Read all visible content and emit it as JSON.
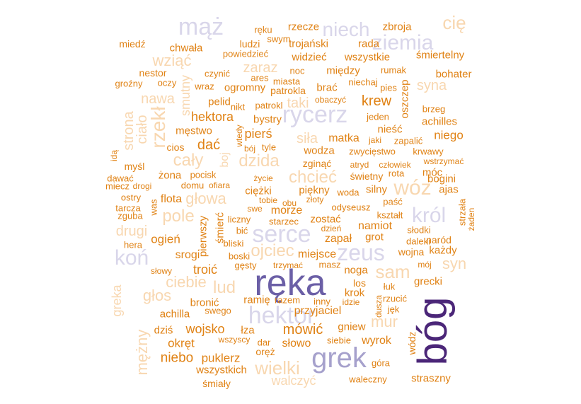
{
  "words": [
    {
      "text": "ręka",
      "color": "#6b5fa6"
    },
    {
      "text": "bóg",
      "color": "#4b2678"
    },
    {
      "text": "grek",
      "color": "#a6a1cc"
    },
    {
      "text": "hektor",
      "color": "#d9d6ea"
    },
    {
      "text": "serce",
      "color": "#d9d6ea"
    },
    {
      "text": "rycerz",
      "color": "#d9d6ea"
    },
    {
      "text": "zeus",
      "color": "#d9d6ea"
    },
    {
      "text": "mąż",
      "color": "#d9d6ea"
    },
    {
      "text": "niech",
      "color": "#d9d6ea"
    },
    {
      "text": "ziemia",
      "color": "#d9d6ea"
    },
    {
      "text": "koń",
      "color": "#d9d6ea"
    },
    {
      "text": "król",
      "color": "#d9d6ea"
    },
    {
      "text": "wóz",
      "color": "#f8d7b0"
    },
    {
      "text": "sam",
      "color": "#f8d7b0"
    },
    {
      "text": "wielki",
      "color": "#f8d7b0"
    },
    {
      "text": "ojciec",
      "color": "#f8d7b0"
    },
    {
      "text": "chcieć",
      "color": "#f8d7b0"
    },
    {
      "text": "dzida",
      "color": "#f8d7b0"
    },
    {
      "text": "cały",
      "color": "#f8d7b0"
    },
    {
      "text": "pole",
      "color": "#f8d7b0"
    },
    {
      "text": "głowa",
      "color": "#f8d7b0"
    },
    {
      "text": "cię",
      "color": "#f8d7b0"
    },
    {
      "text": "wziąć",
      "color": "#f8d7b0"
    },
    {
      "text": "lud",
      "color": "#f8d7b0"
    },
    {
      "text": "mur",
      "color": "#f8d7b0"
    },
    {
      "text": "syn",
      "color": "#f8d7b0"
    },
    {
      "text": "ciebie",
      "color": "#f8d7b0"
    },
    {
      "text": "rzekł",
      "color": "#f8d7b0"
    },
    {
      "text": "strona",
      "color": "#f8d7b0"
    },
    {
      "text": "ciało",
      "color": "#f8d7b0"
    },
    {
      "text": "smutny",
      "color": "#f8d7b0"
    },
    {
      "text": "taki",
      "color": "#f8d7b0"
    },
    {
      "text": "głos",
      "color": "#f8d7b0"
    },
    {
      "text": "mężny",
      "color": "#f8d7b0"
    },
    {
      "text": "greka",
      "color": "#f8d7b0"
    },
    {
      "text": "walczyć",
      "color": "#f8d7b0"
    },
    {
      "text": "drugi",
      "color": "#f8d7b0"
    },
    {
      "text": "siła",
      "color": "#f8d7b0"
    },
    {
      "text": "zaraz",
      "color": "#f8d7b0"
    },
    {
      "text": "nawa",
      "color": "#f8d7b0"
    },
    {
      "text": "syna",
      "color": "#f8d7b0"
    },
    {
      "text": "boj",
      "color": "#f8d7b0"
    },
    {
      "text": "trojański",
      "color": "#e08214"
    },
    {
      "text": "rzecze",
      "color": "#e08214"
    },
    {
      "text": "rada",
      "color": "#e08214"
    },
    {
      "text": "wszystkie",
      "color": "#e08214"
    },
    {
      "text": "śmiertelny",
      "color": "#e08214"
    },
    {
      "text": "zbroja",
      "color": "#e08214"
    },
    {
      "text": "chwała",
      "color": "#e08214"
    },
    {
      "text": "miedź",
      "color": "#e08214"
    },
    {
      "text": "ręku",
      "color": "#e08214"
    },
    {
      "text": "swym",
      "color": "#e08214"
    },
    {
      "text": "ludzi",
      "color": "#e08214"
    },
    {
      "text": "powiedzieć",
      "color": "#e08214"
    },
    {
      "text": "widzieć",
      "color": "#e08214"
    },
    {
      "text": "między",
      "color": "#e08214"
    },
    {
      "text": "bohater",
      "color": "#e08214"
    },
    {
      "text": "nestor",
      "color": "#e08214"
    },
    {
      "text": "czynić",
      "color": "#e08214"
    },
    {
      "text": "noc",
      "color": "#e08214"
    },
    {
      "text": "rumak",
      "color": "#e08214"
    },
    {
      "text": "groźny",
      "color": "#e08214"
    },
    {
      "text": "oczy",
      "color": "#e08214"
    },
    {
      "text": "wraz",
      "color": "#e08214"
    },
    {
      "text": "ares",
      "color": "#e08214"
    },
    {
      "text": "miasta",
      "color": "#e08214"
    },
    {
      "text": "ogromny",
      "color": "#e08214"
    },
    {
      "text": "patrokla",
      "color": "#e08214"
    },
    {
      "text": "brać",
      "color": "#e08214"
    },
    {
      "text": "niechaj",
      "color": "#e08214"
    },
    {
      "text": "pies",
      "color": "#e08214"
    },
    {
      "text": "oszczep",
      "color": "#e08214"
    },
    {
      "text": "obaczyć",
      "color": "#e08214"
    },
    {
      "text": "krew",
      "color": "#e08214"
    },
    {
      "text": "pelid",
      "color": "#e08214"
    },
    {
      "text": "nikt",
      "color": "#e08214"
    },
    {
      "text": "patrokl",
      "color": "#e08214"
    },
    {
      "text": "bystry",
      "color": "#e08214"
    },
    {
      "text": "hektora",
      "color": "#e08214"
    },
    {
      "text": "brzeg",
      "color": "#e08214"
    },
    {
      "text": "jeden",
      "color": "#e08214"
    },
    {
      "text": "achilles",
      "color": "#e08214"
    },
    {
      "text": "męstwo",
      "color": "#e08214"
    },
    {
      "text": "wtedy",
      "color": "#e08214"
    },
    {
      "text": "pierś",
      "color": "#e08214"
    },
    {
      "text": "nieść",
      "color": "#e08214"
    },
    {
      "text": "niego",
      "color": "#e08214"
    },
    {
      "text": "matka",
      "color": "#e08214"
    },
    {
      "text": "jaki",
      "color": "#e08214"
    },
    {
      "text": "zapalić",
      "color": "#e08214"
    },
    {
      "text": "dać",
      "color": "#e08214"
    },
    {
      "text": "cios",
      "color": "#e08214"
    },
    {
      "text": "bój",
      "color": "#e08214"
    },
    {
      "text": "tyle",
      "color": "#e08214"
    },
    {
      "text": "wodza",
      "color": "#e08214"
    },
    {
      "text": "zwycięstwo",
      "color": "#e08214"
    },
    {
      "text": "krwawy",
      "color": "#e08214"
    },
    {
      "text": "zginąć",
      "color": "#e08214"
    },
    {
      "text": "atryd",
      "color": "#e08214"
    },
    {
      "text": "człowiek",
      "color": "#e08214"
    },
    {
      "text": "wstrzymać",
      "color": "#e08214"
    },
    {
      "text": "idą",
      "color": "#e08214"
    },
    {
      "text": "myśl",
      "color": "#e08214"
    },
    {
      "text": "dawać",
      "color": "#e08214"
    },
    {
      "text": "żona",
      "color": "#e08214"
    },
    {
      "text": "pocisk",
      "color": "#e08214"
    },
    {
      "text": "świetny",
      "color": "#e08214"
    },
    {
      "text": "rota",
      "color": "#e08214"
    },
    {
      "text": "móc",
      "color": "#e08214"
    },
    {
      "text": "miecz",
      "color": "#e08214"
    },
    {
      "text": "drogi",
      "color": "#e08214"
    },
    {
      "text": "domu",
      "color": "#e08214"
    },
    {
      "text": "ofiara",
      "color": "#e08214"
    },
    {
      "text": "życie",
      "color": "#e08214"
    },
    {
      "text": "ciężki",
      "color": "#e08214"
    },
    {
      "text": "piękny",
      "color": "#e08214"
    },
    {
      "text": "woda",
      "color": "#e08214"
    },
    {
      "text": "silny",
      "color": "#e08214"
    },
    {
      "text": "bogini",
      "color": "#e08214"
    },
    {
      "text": "ajas",
      "color": "#e08214"
    },
    {
      "text": "ostry",
      "color": "#e08214"
    },
    {
      "text": "flota",
      "color": "#e08214"
    },
    {
      "text": "tobie",
      "color": "#e08214"
    },
    {
      "text": "obu",
      "color": "#e08214"
    },
    {
      "text": "złoty",
      "color": "#e08214"
    },
    {
      "text": "tarcza",
      "color": "#e08214"
    },
    {
      "text": "was",
      "color": "#e08214"
    },
    {
      "text": "swe",
      "color": "#e08214"
    },
    {
      "text": "morze",
      "color": "#e08214"
    },
    {
      "text": "odyseusz",
      "color": "#e08214"
    },
    {
      "text": "paść",
      "color": "#e08214"
    },
    {
      "text": "zguba",
      "color": "#e08214"
    },
    {
      "text": "kształt",
      "color": "#e08214"
    },
    {
      "text": "strzała",
      "color": "#e08214"
    },
    {
      "text": "żaden",
      "color": "#e08214"
    },
    {
      "text": "starzec",
      "color": "#e08214"
    },
    {
      "text": "zostać",
      "color": "#e08214"
    },
    {
      "text": "śmierć",
      "color": "#e08214"
    },
    {
      "text": "pierwszy",
      "color": "#e08214"
    },
    {
      "text": "bić",
      "color": "#e08214"
    },
    {
      "text": "dzień",
      "color": "#e08214"
    },
    {
      "text": "namiot",
      "color": "#e08214"
    },
    {
      "text": "słodki",
      "color": "#e08214"
    },
    {
      "text": "ogień",
      "color": "#e08214"
    },
    {
      "text": "liczny",
      "color": "#e08214"
    },
    {
      "text": "zapał",
      "color": "#e08214"
    },
    {
      "text": "grot",
      "color": "#e08214"
    },
    {
      "text": "daleki",
      "color": "#e08214"
    },
    {
      "text": "naród",
      "color": "#e08214"
    },
    {
      "text": "hera",
      "color": "#e08214"
    },
    {
      "text": "bliski",
      "color": "#e08214"
    },
    {
      "text": "srogi",
      "color": "#e08214"
    },
    {
      "text": "boski",
      "color": "#e08214"
    },
    {
      "text": "miejsce",
      "color": "#e08214"
    },
    {
      "text": "wojna",
      "color": "#e08214"
    },
    {
      "text": "każdy",
      "color": "#e08214"
    },
    {
      "text": "gęsty",
      "color": "#e08214"
    },
    {
      "text": "trzymać",
      "color": "#e08214"
    },
    {
      "text": "masz",
      "color": "#e08214"
    },
    {
      "text": "mój",
      "color": "#e08214"
    },
    {
      "text": "słowy",
      "color": "#e08214"
    },
    {
      "text": "troić",
      "color": "#e08214"
    },
    {
      "text": "noga",
      "color": "#e08214"
    },
    {
      "text": "grecki",
      "color": "#e08214"
    },
    {
      "text": "los",
      "color": "#e08214"
    },
    {
      "text": "łuk",
      "color": "#e08214"
    },
    {
      "text": "krok",
      "color": "#e08214"
    },
    {
      "text": "ramię",
      "color": "#e08214"
    },
    {
      "text": "razem",
      "color": "#e08214"
    },
    {
      "text": "inny",
      "color": "#e08214"
    },
    {
      "text": "idzie",
      "color": "#e08214"
    },
    {
      "text": "rzucić",
      "color": "#e08214"
    },
    {
      "text": "dusza",
      "color": "#e08214"
    },
    {
      "text": "bronić",
      "color": "#e08214"
    },
    {
      "text": "achilla",
      "color": "#e08214"
    },
    {
      "text": "swego",
      "color": "#e08214"
    },
    {
      "text": "przyjaciel",
      "color": "#e08214"
    },
    {
      "text": "jęk",
      "color": "#e08214"
    },
    {
      "text": "gniew",
      "color": "#e08214"
    },
    {
      "text": "dziś",
      "color": "#e08214"
    },
    {
      "text": "wojsko",
      "color": "#e08214"
    },
    {
      "text": "łza",
      "color": "#e08214"
    },
    {
      "text": "mówić",
      "color": "#e08214"
    },
    {
      "text": "okręt",
      "color": "#e08214"
    },
    {
      "text": "wszyscy",
      "color": "#e08214"
    },
    {
      "text": "dar",
      "color": "#e08214"
    },
    {
      "text": "słowo",
      "color": "#e08214"
    },
    {
      "text": "siebie",
      "color": "#e08214"
    },
    {
      "text": "wyrok",
      "color": "#e08214"
    },
    {
      "text": "wódz",
      "color": "#e08214"
    },
    {
      "text": "niebo",
      "color": "#e08214"
    },
    {
      "text": "puklerz",
      "color": "#e08214"
    },
    {
      "text": "oręż",
      "color": "#e08214"
    },
    {
      "text": "góra",
      "color": "#e08214"
    },
    {
      "text": "wszystkich",
      "color": "#e08214"
    },
    {
      "text": "śmiały",
      "color": "#e08214"
    },
    {
      "text": "waleczny",
      "color": "#e08214"
    },
    {
      "text": "straszny",
      "color": "#e08214"
    }
  ]
}
